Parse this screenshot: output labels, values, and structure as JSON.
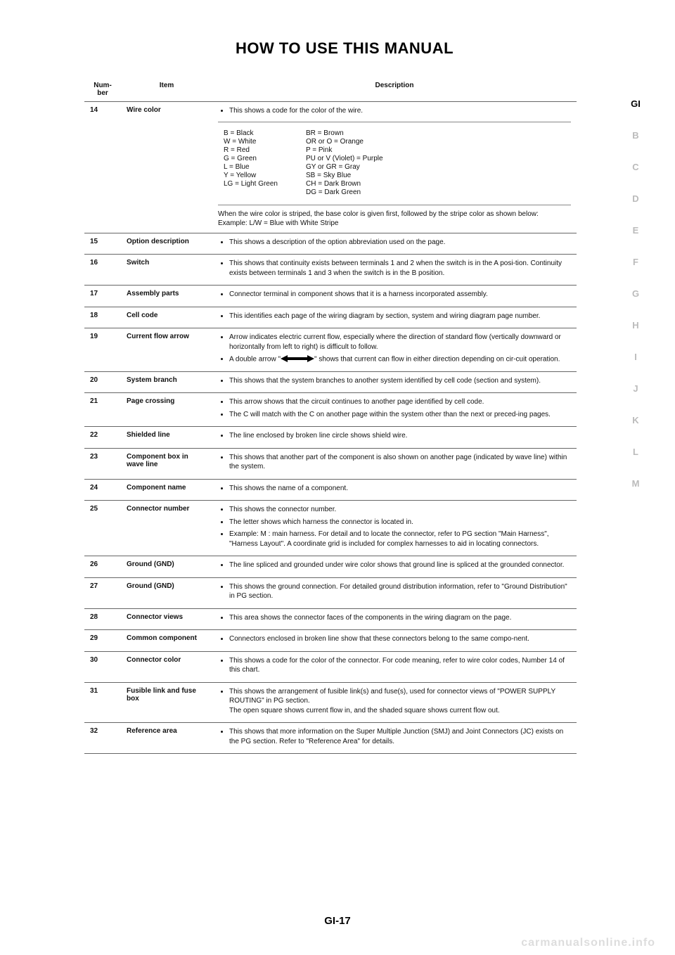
{
  "page": {
    "title": "HOW TO USE THIS MANUAL",
    "footer": "GI-17",
    "watermark": "carmanualsonline.info"
  },
  "side_tabs": [
    "GI",
    "B",
    "C",
    "D",
    "E",
    "F",
    "G",
    "H",
    "I",
    "J",
    "K",
    "L",
    "M"
  ],
  "table": {
    "headers": {
      "num": "Num-\nber",
      "item": "Item",
      "desc": "Description"
    },
    "rows": [
      {
        "num": "14",
        "item": "Wire color",
        "desc_top_bullet": "This shows a code for the color of the wire.",
        "wire_left": [
          "B = Black",
          "W = White",
          "R = Red",
          "G = Green",
          "L = Blue",
          "Y = Yellow",
          "LG = Light Green"
        ],
        "wire_right": [
          "BR = Brown",
          "OR or O = Orange",
          "P = Pink",
          "PU or V (Violet) = Purple",
          "GY or GR = Gray",
          "SB = Sky Blue",
          "CH = Dark Brown",
          "DG = Dark Green"
        ],
        "desc_bottom_lines": [
          "When the wire color is striped, the base color is given first, followed by the stripe color as shown below:",
          "Example: L/W = Blue with White Stripe"
        ]
      },
      {
        "num": "15",
        "item": "Option description",
        "bullets": [
          "This shows a description of the option abbreviation used on the page."
        ]
      },
      {
        "num": "16",
        "item": "Switch",
        "bullets": [
          "This shows that continuity exists between terminals 1 and 2 when the switch is in the A posi-tion. Continuity exists between terminals 1 and 3 when the switch is in the B position."
        ]
      },
      {
        "num": "17",
        "item": "Assembly parts",
        "bullets": [
          "Connector terminal in component shows that it is a harness incorporated assembly."
        ]
      },
      {
        "num": "18",
        "item": "Cell code",
        "bullets": [
          "This identifies each page of the wiring diagram by section, system and wiring diagram page number."
        ]
      },
      {
        "num": "19",
        "item": "Current flow arrow",
        "bullets": [
          "Arrow indicates electric current flow, especially where the direction of standard flow (vertically downward or horizontally from left to right) is difficult to follow.",
          "A double arrow \"__ARROW__\" shows that current can flow in either direction depending on cir-cuit operation."
        ]
      },
      {
        "num": "20",
        "item": "System branch",
        "bullets": [
          "This shows that the system branches to another system identified by cell code (section and system)."
        ]
      },
      {
        "num": "21",
        "item": "Page crossing",
        "bullets": [
          "This arrow shows that the circuit continues to another page identified by cell code.",
          "The C will match with the C on another page within the system other than the next or preced-ing pages."
        ]
      },
      {
        "num": "22",
        "item": "Shielded line",
        "bullets": [
          "The line enclosed by broken line circle shows shield wire."
        ]
      },
      {
        "num": "23",
        "item": "Component box in wave line",
        "bullets": [
          "This shows that another part of the component is also shown on another page (indicated by wave line) within the system."
        ]
      },
      {
        "num": "24",
        "item": "Component name",
        "bullets": [
          "This shows the name of a component."
        ]
      },
      {
        "num": "25",
        "item": "Connector number",
        "bullets": [
          "This shows the connector number.",
          "The letter shows which harness the connector is located in.",
          "Example: M : main harness. For detail and to locate the connector, refer to PG section \"Main Harness\", \"Harness Layout\". A coordinate grid is included for complex harnesses to aid in locating connectors."
        ]
      },
      {
        "num": "26",
        "item": "Ground (GND)",
        "bullets": [
          "The line spliced and grounded under wire color shows that ground line is spliced at the grounded connector."
        ]
      },
      {
        "num": "27",
        "item": "Ground (GND)",
        "bullets": [
          "This shows the ground connection. For detailed ground distribution information, refer to \"Ground Distribution\" in PG section."
        ]
      },
      {
        "num": "28",
        "item": "Connector views",
        "bullets": [
          "This area shows the connector faces of the components in the wiring diagram on the page."
        ]
      },
      {
        "num": "29",
        "item": "Common component",
        "bullets": [
          "Connectors enclosed in broken line show that these connectors belong to the same compo-nent."
        ]
      },
      {
        "num": "30",
        "item": "Connector color",
        "bullets": [
          "This shows a code for the color of the connector. For code meaning, refer to wire color codes, Number 14 of this chart."
        ]
      },
      {
        "num": "31",
        "item": "Fusible link and fuse box",
        "bullets": [
          "This shows the arrangement of fusible link(s) and fuse(s), used for connector views of \"POWER SUPPLY ROUTING\" in PG section.\nThe open square shows current flow in, and the shaded square shows current flow out."
        ]
      },
      {
        "num": "32",
        "item": "Reference area",
        "bullets": [
          "This shows that more information on the Super Multiple Junction (SMJ) and Joint Connectors (JC) exists on the PG section. Refer to \"Reference Area\" for details."
        ]
      }
    ]
  }
}
